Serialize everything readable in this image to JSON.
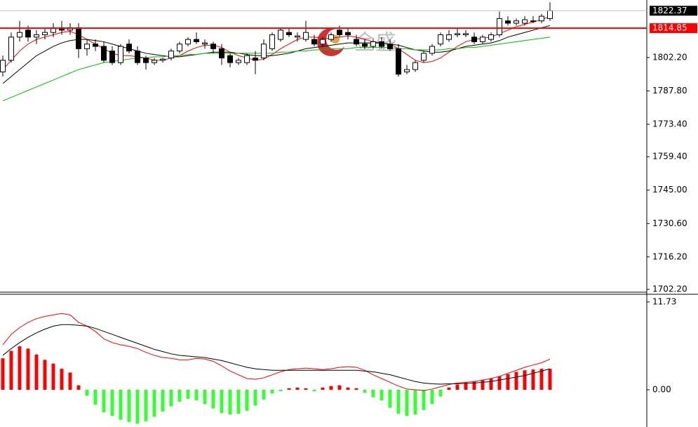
{
  "chart_data": [
    {
      "type": "candlestick",
      "watermark": "金盛",
      "ylim": [
        1701,
        1827
      ],
      "yticks": [
        {
          "value": 1802.2,
          "label": "1802.20"
        },
        {
          "value": 1787.8,
          "label": "1787.80"
        },
        {
          "value": 1773.4,
          "label": "1773.40"
        },
        {
          "value": 1759.4,
          "label": "1759.40"
        },
        {
          "value": 1745,
          "label": "1745.00"
        },
        {
          "value": 1730.6,
          "label": "1730.60"
        },
        {
          "value": 1716.2,
          "label": "1716.20"
        },
        {
          "value": 1702.2,
          "label": "1702.20"
        }
      ],
      "open": [
        1796,
        1801,
        1811,
        1814,
        1811,
        1812,
        1813,
        1815,
        1814,
        1815,
        1806,
        1808,
        1807,
        1805,
        1800,
        1808,
        1805,
        1802,
        1800,
        1801,
        1802,
        1805,
        1808,
        1810,
        1808,
        1808,
        1806,
        1803,
        1800,
        1800,
        1802,
        1802,
        1806,
        1810,
        1813,
        1811,
        1810,
        1810,
        1808,
        1810,
        1814,
        1813,
        1810,
        1808,
        1807,
        1809,
        1808,
        1806,
        1796,
        1797,
        1801,
        1804,
        1808,
        1810,
        1812,
        1812,
        1811,
        1809,
        1810,
        1812,
        1818,
        1817,
        1817,
        1818,
        1818,
        1819
      ],
      "high": [
        1803,
        1813,
        1818,
        1816,
        1814,
        1815,
        1817,
        1818,
        1817,
        1817,
        1810,
        1810,
        1809,
        1807,
        1808,
        1810,
        1807,
        1803,
        1802,
        1802,
        1806,
        1809,
        1811,
        1813,
        1810,
        1809,
        1808,
        1804,
        1802,
        1804,
        1805,
        1810,
        1813,
        1815,
        1815,
        1813,
        1818,
        1812,
        1811,
        1813,
        1816,
        1815,
        1812,
        1810,
        1810,
        1811,
        1810,
        1808,
        1799,
        1801,
        1805,
        1808,
        1813,
        1814,
        1815,
        1814,
        1813,
        1812,
        1813,
        1822,
        1820,
        1819,
        1820,
        1820,
        1821,
        1826
      ],
      "low": [
        1794,
        1800,
        1809,
        1809,
        1808,
        1810,
        1811,
        1812,
        1812,
        1802,
        1803,
        1805,
        1800,
        1799,
        1799,
        1804,
        1799,
        1797,
        1799,
        1800,
        1801,
        1804,
        1807,
        1808,
        1806,
        1804,
        1799,
        1798,
        1799,
        1799,
        1795,
        1801,
        1805,
        1809,
        1811,
        1809,
        1809,
        1807,
        1807,
        1809,
        1811,
        1810,
        1807,
        1806,
        1806,
        1806,
        1805,
        1794,
        1795,
        1796,
        1800,
        1803,
        1807,
        1809,
        1811,
        1811,
        1808,
        1808,
        1809,
        1811,
        1816,
        1816,
        1816,
        1817,
        1817,
        1818
      ],
      "close": [
        1801,
        1811,
        1813,
        1811,
        1812,
        1813,
        1815,
        1814,
        1815,
        1806,
        1808,
        1807,
        1801,
        1800,
        1807,
        1805,
        1800,
        1800,
        1801,
        1801.5,
        1805,
        1808,
        1810,
        1809,
        1808.5,
        1806,
        1802,
        1800,
        1801,
        1803,
        1801,
        1808,
        1812,
        1814,
        1812,
        1811.5,
        1813,
        1808,
        1810,
        1812,
        1812,
        1812,
        1808,
        1807,
        1809,
        1807,
        1806,
        1795,
        1797,
        1800,
        1804,
        1807,
        1812,
        1812,
        1812.5,
        1812.5,
        1809,
        1811,
        1812,
        1819,
        1817,
        1818,
        1818.5,
        1818,
        1820,
        1822.37
      ],
      "overlays": [
        {
          "color": "#ff0000",
          "values": [
            1797,
            1801,
            1805,
            1808,
            1810,
            1811,
            1812,
            1813,
            1813.5,
            1812,
            1810,
            1808,
            1806,
            1804,
            1803,
            1803,
            1802.5,
            1802,
            1801,
            1801,
            1802,
            1803,
            1805,
            1806.5,
            1807.5,
            1807.5,
            1806.5,
            1804.5,
            1803,
            1802,
            1801,
            1801.5,
            1803.5,
            1806,
            1808,
            1810,
            1811,
            1811,
            1810.5,
            1810.5,
            1811,
            1811.5,
            1811,
            1810,
            1809,
            1808.5,
            1808,
            1806,
            1803.5,
            1801,
            1800,
            1800.5,
            1802,
            1804.5,
            1807,
            1809,
            1810,
            1810.5,
            1811,
            1812.5,
            1814,
            1815.5,
            1816.5,
            1817.5,
            1818.5,
            1820
          ]
        },
        {
          "color": "#000000",
          "values": [
            1791,
            1794,
            1797,
            1800,
            1803,
            1805,
            1807,
            1808.5,
            1809.5,
            1810,
            1810,
            1809.5,
            1809,
            1808,
            1807,
            1806,
            1805,
            1804,
            1803.5,
            1803,
            1802.5,
            1802.5,
            1803,
            1803.5,
            1804,
            1804.5,
            1804.5,
            1804.5,
            1804,
            1803.5,
            1803,
            1803,
            1803,
            1803.5,
            1804,
            1805,
            1806,
            1806.5,
            1807,
            1807.5,
            1808,
            1808.5,
            1808.5,
            1808.5,
            1808.5,
            1808.5,
            1808,
            1807.5,
            1806.5,
            1805.5,
            1805,
            1804.5,
            1804.5,
            1805,
            1806,
            1807,
            1807.5,
            1808,
            1808.5,
            1809.5,
            1811,
            1812,
            1813,
            1814,
            1815,
            1816
          ]
        },
        {
          "color": "#00c000",
          "values": [
            1783.5,
            1785,
            1786.5,
            1788,
            1789.5,
            1791,
            1792.5,
            1794,
            1795.5,
            1797,
            1798,
            1799,
            1800,
            1800.5,
            1801,
            1801.5,
            1802,
            1802,
            1802.5,
            1802.5,
            1803,
            1803,
            1803.5,
            1803.5,
            1804,
            1804,
            1804,
            1804,
            1804,
            1804,
            1804,
            1804,
            1804,
            1804.5,
            1804.5,
            1805,
            1805,
            1805.5,
            1805.5,
            1806,
            1806,
            1806,
            1806.5,
            1806.5,
            1806.5,
            1806.5,
            1806.5,
            1806,
            1806,
            1805.5,
            1805.5,
            1805.5,
            1805.5,
            1806,
            1806,
            1806.5,
            1806.5,
            1807,
            1807.5,
            1808,
            1808.5,
            1809,
            1809.5,
            1810,
            1810.5,
            1811
          ]
        }
      ],
      "hlines": [
        {
          "value": 1822.37,
          "color": "#c0c0c0",
          "label_color": "#000000"
        },
        {
          "value": 1814.85,
          "color": "#ff0000",
          "label_color": "#ff0000"
        }
      ]
    },
    {
      "type": "macd",
      "ylim": [
        -4.97,
        12.66
      ],
      "yticks": [
        11.73,
        {
          "value": 0,
          "label": "0.00"
        }
      ],
      "up_color": "#ff0000",
      "down_color": "#33ff33",
      "values": [
        4.2,
        5.2,
        5.8,
        5.5,
        4.7,
        4.0,
        3.5,
        2.8,
        2.3,
        0.6,
        -0.8,
        -2.0,
        -3.0,
        -3.5,
        -4.0,
        -4.3,
        -4.5,
        -4.2,
        -3.6,
        -2.9,
        -2.2,
        -1.6,
        -1.2,
        -1.4,
        -1.9,
        -2.5,
        -3.1,
        -3.3,
        -3.2,
        -2.8,
        -2.1,
        -1.3,
        -0.5,
        -0.2,
        0.2,
        0.3,
        0.2,
        -0.2,
        0.3,
        0.5,
        0.6,
        0.3,
        0.2,
        -0.4,
        -1.0,
        -1.4,
        -2.4,
        -3.2,
        -3.5,
        -3.3,
        -2.7,
        -1.9,
        -0.9,
        0.3,
        0.7,
        1.0,
        1.1,
        1.3,
        1.5,
        1.8,
        2.1,
        2.4,
        2.6,
        2.7,
        2.8,
        2.8
      ],
      "lines": [
        {
          "color": "#ff0000",
          "values": [
            6.0,
            7.4,
            8.3,
            9.0,
            9.5,
            9.8,
            10.0,
            10.2,
            10.0,
            9.0,
            8.5,
            7.8,
            6.8,
            6.3,
            6.0,
            5.8,
            5.5,
            5.0,
            4.6,
            4.3,
            4.2,
            4.0,
            4.0,
            4.2,
            4.1,
            3.8,
            3.2,
            2.5,
            2.0,
            1.5,
            1.4,
            1.6,
            2.0,
            2.4,
            2.7,
            2.8,
            2.9,
            2.8,
            2.7,
            2.8,
            3.0,
            3.1,
            3.0,
            2.6,
            2.0,
            1.5,
            1.0,
            0.5,
            0.1,
            0.0,
            -0.1,
            0.1,
            0.4,
            0.7,
            0.9,
            1.0,
            1.1,
            1.3,
            1.5,
            1.8,
            2.2,
            2.6,
            3.0,
            3.3,
            3.6,
            4.1
          ]
        },
        {
          "color": "#000000",
          "values": [
            4.6,
            5.5,
            6.3,
            7.0,
            7.6,
            8.1,
            8.5,
            8.7,
            8.7,
            8.6,
            8.5,
            8.2,
            7.8,
            7.4,
            7.0,
            6.6,
            6.2,
            5.8,
            5.4,
            5.1,
            4.8,
            4.6,
            4.5,
            4.4,
            4.3,
            4.1,
            3.9,
            3.6,
            3.3,
            3.0,
            2.8,
            2.7,
            2.6,
            2.6,
            2.6,
            2.6,
            2.6,
            2.6,
            2.6,
            2.6,
            2.6,
            2.6,
            2.6,
            2.5,
            2.4,
            2.2,
            2.0,
            1.7,
            1.4,
            1.1,
            0.9,
            0.8,
            0.75,
            0.8,
            0.8,
            0.85,
            0.9,
            1.0,
            1.1,
            1.3,
            1.5,
            1.7,
            1.9,
            2.2,
            2.5,
            2.8
          ]
        }
      ]
    }
  ]
}
